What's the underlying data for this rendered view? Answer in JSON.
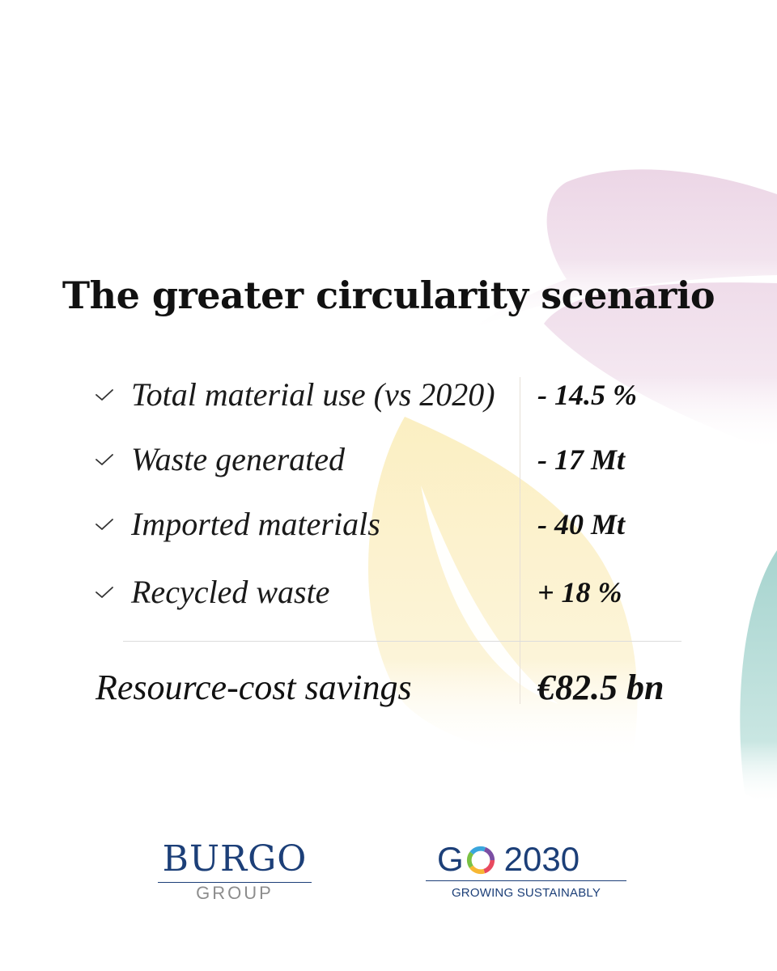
{
  "title": "The greater circularity scenario",
  "items": [
    {
      "label": "Total material use (vs 2020)",
      "value": "- 14.5 %"
    },
    {
      "label": "Waste generated",
      "value": "- 17 Mt"
    },
    {
      "label": "Imported materials",
      "value": "- 40 Mt"
    },
    {
      "label": "Recycled waste",
      "value": "+ 18 %"
    }
  ],
  "total": {
    "label": "Resource-cost savings",
    "value": "€82.5 bn"
  },
  "logos": {
    "burgo": {
      "wordmark": "BURGO",
      "sub": "GROUP"
    },
    "go2030": {
      "g": "G",
      "year": "2030",
      "tagline": "GROWING SUSTAINABLY"
    }
  },
  "colors": {
    "leaf_pink": "#ecd6e6",
    "leaf_yellow": "#fbefc2",
    "leaf_teal": "#a7d4cf",
    "brand_blue": "#1c3f78",
    "ring": [
      "#e84a5f",
      "#f7b733",
      "#7ac143",
      "#3aa6dd",
      "#7b4ea3"
    ]
  },
  "icons": {
    "check": "check-icon",
    "leaves": "leaf-decoration"
  }
}
